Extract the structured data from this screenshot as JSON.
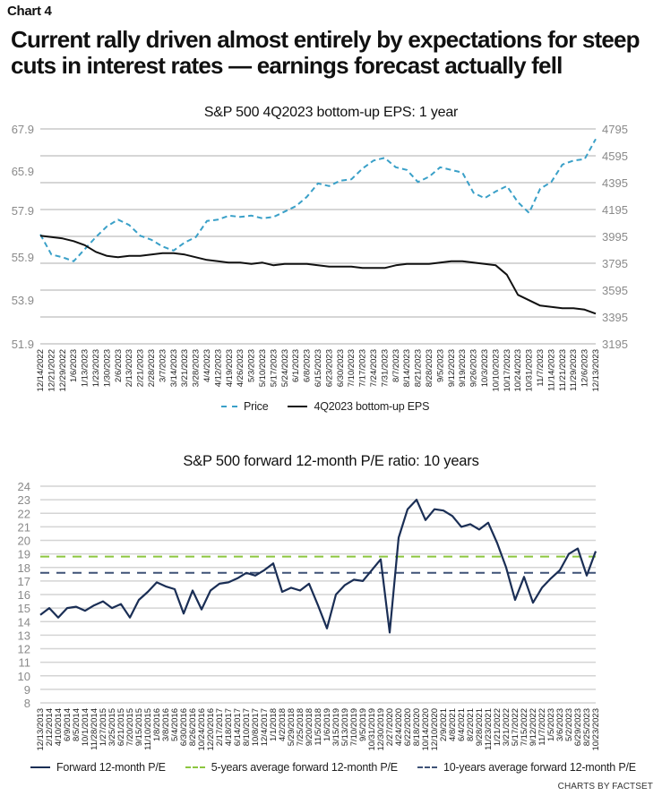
{
  "header": {
    "chart_label": "Chart 4",
    "headline": "Current rally driven almost entirely by expectations for steep cuts in interest rates — earnings forecast actually fell"
  },
  "footer": {
    "credit": "CHARTS BY FACTSET"
  },
  "colors": {
    "price": "#3aa0c8",
    "eps": "#111111",
    "pe": "#1a2e55",
    "avg5": "#8cc63f",
    "avg10": "#3f5277",
    "grid": "#c8c8c8"
  },
  "chart_data": [
    {
      "type": "line",
      "title": "S&P 500 4Q2023 bottom-up EPS: 1 year",
      "xlabel": "",
      "ylabel_left": "4Q2023 bottom-up EPS",
      "ylabel_right": "Price",
      "left_ticks": [
        "67.9",
        "65.9",
        "57.9",
        "55.9",
        "53.9",
        "51.9"
      ],
      "right_ticks": [
        "4795",
        "4595",
        "4395",
        "4195",
        "3995",
        "3795",
        "3595",
        "3395",
        "3195"
      ],
      "right_ylim": [
        3195,
        4795
      ],
      "grid": true,
      "legend_position": "bottom",
      "categories": [
        "12/14/2022",
        "12/21/2022",
        "12/29/2022",
        "1/6/2023",
        "1/13/2023",
        "1/23/2023",
        "1/30/2023",
        "2/6/2023",
        "2/13/2023",
        "2/21/2023",
        "2/28/2023",
        "3/7/2023",
        "3/14/2023",
        "3/21/2023",
        "3/28/2023",
        "4/4/2023",
        "4/12/2023",
        "4/19/2023",
        "4/26/2023",
        "5/3/2023",
        "5/10/2023",
        "5/17/2023",
        "5/24/2023",
        "6/1/2023",
        "6/8/2023",
        "6/15/2023",
        "6/23/2023",
        "6/30/2023",
        "7/10/2023",
        "7/17/2023",
        "7/24/2023",
        "7/31/2023",
        "8/7/2023",
        "8/14/2023",
        "8/21/2023",
        "8/28/2023",
        "9/5/2023",
        "9/12/2023",
        "9/19/2023",
        "9/26/2023",
        "10/3/2023",
        "10/10/2023",
        "10/17/2023",
        "10/24/2023",
        "10/31/2023",
        "11/7/2023",
        "11/14/2023",
        "11/21/2023",
        "11/29/2023",
        "12/6/2023",
        "12/13/2023"
      ],
      "series": [
        {
          "name": "Price",
          "axis": "right",
          "style": "dashed",
          "values": [
            4010,
            3860,
            3840,
            3810,
            3900,
            3990,
            4070,
            4120,
            4080,
            4000,
            3970,
            3920,
            3890,
            3950,
            3990,
            4110,
            4120,
            4150,
            4140,
            4150,
            4130,
            4140,
            4180,
            4220,
            4290,
            4390,
            4370,
            4410,
            4420,
            4500,
            4560,
            4580,
            4510,
            4490,
            4400,
            4440,
            4510,
            4490,
            4470,
            4320,
            4280,
            4330,
            4370,
            4250,
            4170,
            4350,
            4400,
            4530,
            4560,
            4570,
            4720
          ]
        },
        {
          "name": "4Q2023 bottom-up EPS",
          "axis": "right_scaled_eps",
          "style": "solid",
          "values": [
            4000,
            3990,
            3980,
            3960,
            3930,
            3880,
            3850,
            3840,
            3850,
            3850,
            3860,
            3870,
            3870,
            3860,
            3840,
            3820,
            3810,
            3800,
            3800,
            3790,
            3800,
            3780,
            3790,
            3790,
            3790,
            3780,
            3770,
            3770,
            3770,
            3760,
            3760,
            3760,
            3780,
            3790,
            3790,
            3790,
            3800,
            3810,
            3810,
            3800,
            3790,
            3780,
            3710,
            3560,
            3520,
            3480,
            3470,
            3460,
            3460,
            3450,
            3420
          ]
        }
      ]
    },
    {
      "type": "line",
      "title": "S&P 500 forward 12-month P/E ratio: 10 years",
      "xlabel": "",
      "ylabel": "",
      "ylim": [
        8,
        24
      ],
      "y_ticks": [
        "24",
        "23",
        "22",
        "21",
        "20",
        "19",
        "18",
        "17",
        "16",
        "15",
        "14",
        "13",
        "12",
        "11",
        "10",
        "9",
        "8"
      ],
      "grid": true,
      "legend_position": "bottom",
      "categories": [
        "12/13/2013",
        "2/12/2014",
        "4/10/2014",
        "6/9/2014",
        "8/5/2014",
        "10/1/2014",
        "11/28/2014",
        "1/27/2015",
        "3/25/2015",
        "6/21/2015",
        "7/20/2015",
        "9/15/2015",
        "11/10/2015",
        "1/8/2016",
        "3/8/2016",
        "5/4/2016",
        "6/30/2016",
        "8/26/2016",
        "10/24/2016",
        "12/20/2016",
        "2/17/2017",
        "4/18/2017",
        "6/14/2017",
        "8/10/2017",
        "10/8/2017",
        "12/4/2017",
        "1/1/2018",
        "4/2/2018",
        "5/29/2018",
        "7/25/2018",
        "9/20/2018",
        "11/5/2018",
        "1/6/2019",
        "3/15/2019",
        "5/13/2019",
        "7/10/2019",
        "9/5/2019",
        "10/31/2019",
        "12/30/2019",
        "2/27/2020",
        "4/24/2020",
        "6/22/2020",
        "8/18/2020",
        "10/14/2020",
        "12/10/2020",
        "2/9/2021",
        "4/8/2021",
        "6/4/2021",
        "8/2/2021",
        "9/28/2021",
        "11/23/2021",
        "1/21/2022",
        "3/21/2022",
        "5/17/2022",
        "7/15/2022",
        "9/12/2022",
        "11/7/2022",
        "1/5/2023",
        "3/6/2023",
        "5/2/2023",
        "6/29/2023",
        "8/25/2023",
        "10/23/2023"
      ],
      "series": [
        {
          "name": "Forward 12-month P/E",
          "style": "solid",
          "values": [
            14.5,
            15.0,
            14.3,
            15.0,
            15.1,
            14.8,
            15.2,
            15.5,
            15.0,
            15.3,
            14.3,
            15.6,
            16.2,
            16.9,
            16.6,
            16.4,
            14.6,
            16.3,
            14.9,
            16.3,
            16.8,
            16.9,
            17.2,
            17.6,
            17.4,
            17.8,
            18.3,
            16.2,
            16.5,
            16.3,
            16.8,
            15.2,
            13.5,
            16.0,
            16.7,
            17.1,
            17.0,
            17.8,
            18.6,
            13.2,
            20.2,
            22.3,
            23.0,
            21.5,
            22.3,
            22.2,
            21.8,
            21.0,
            21.2,
            20.8,
            21.3,
            19.8,
            18.0,
            15.6,
            17.3,
            15.4,
            16.5,
            17.2,
            17.8,
            19.0,
            19.4,
            17.4,
            19.2
          ]
        },
        {
          "name": "5-years average forward 12-month P/E",
          "style": "dashed",
          "values": [
            18.8
          ]
        },
        {
          "name": "10-years average forward 12-month P/E",
          "style": "dashed",
          "values": [
            17.6
          ]
        }
      ]
    }
  ]
}
